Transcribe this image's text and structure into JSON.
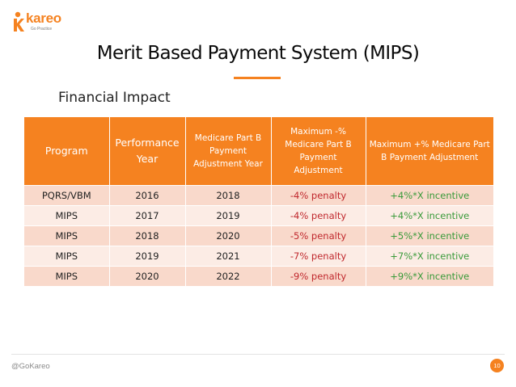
{
  "brand": {
    "name": "kareo",
    "tagline": "Go Practice"
  },
  "slide": {
    "title": "Merit Based Payment System (MIPS)",
    "subtitle": "Financial Impact"
  },
  "table": {
    "headers": [
      "Program",
      "Performance Year",
      "Medicare Part B Payment Adjustment Year",
      "Maximum -% Medicare Part B Payment Adjustment",
      "Maximum +% Medicare Part B Payment Adjustment"
    ],
    "rows": [
      [
        "PQRS/VBM",
        "2016",
        "2018",
        "-4% penalty",
        "+4%*X incentive"
      ],
      [
        "MIPS",
        "2017",
        "2019",
        "-4% penalty",
        "+4%*X incentive"
      ],
      [
        "MIPS",
        "2018",
        "2020",
        "-5% penalty",
        "+5%*X incentive"
      ],
      [
        "MIPS",
        "2019",
        "2021",
        "-7% penalty",
        "+7%*X incentive"
      ],
      [
        "MIPS",
        "2020",
        "2022",
        "-9% penalty",
        "+9%*X incentive"
      ]
    ]
  },
  "footer": {
    "handle": "@GoKareo",
    "page_number": "10"
  },
  "colors": {
    "accent": "#f58220",
    "penalty": "#c0282d",
    "incentive": "#3a9a3a",
    "row_odd": "#f9d9cb",
    "row_even": "#fcece5"
  }
}
